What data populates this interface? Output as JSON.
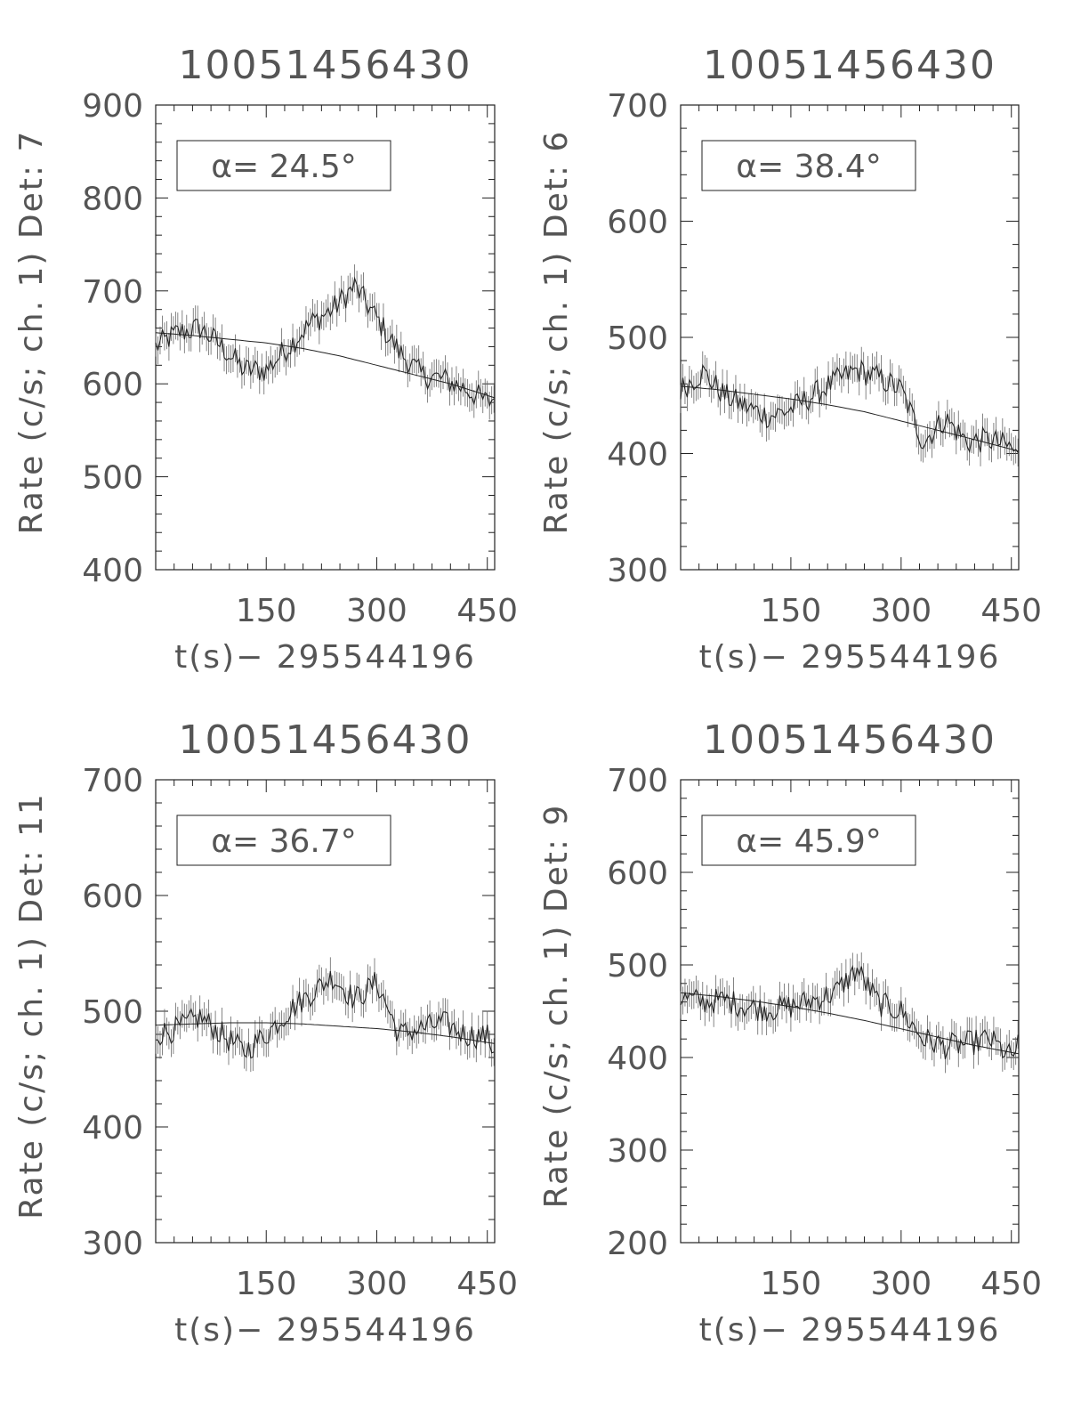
{
  "chart_data": [
    {
      "type": "line",
      "title": "10051456430",
      "xlabel": "t(s)− 295544196",
      "ylabel": "Rate (c/s; ch. 1) Det: 7",
      "annotation": "α= 24.5°",
      "xlim": [
        0,
        460
      ],
      "ylim": [
        400,
        900
      ],
      "xticks": [
        150,
        300,
        450
      ],
      "yticks": [
        400,
        500,
        600,
        700,
        800,
        900
      ],
      "series": [
        {
          "x": [
            0,
            30,
            60,
            90,
            120,
            150,
            180,
            210,
            240,
            270,
            300,
            330,
            360,
            390,
            420,
            450,
            460
          ],
          "y": [
            640,
            655,
            660,
            640,
            615,
            615,
            640,
            665,
            680,
            705,
            670,
            635,
            610,
            605,
            595,
            580,
            585
          ]
        },
        {
          "x": [
            0,
            50,
            100,
            150,
            200,
            250,
            300,
            350,
            400,
            460
          ],
          "y": [
            655,
            652,
            648,
            644,
            638,
            630,
            620,
            610,
            600,
            585
          ]
        }
      ]
    },
    {
      "type": "line",
      "title": "10051456430",
      "xlabel": "t(s)− 295544196",
      "ylabel": "Rate (c/s; ch. 1) Det: 6",
      "annotation": "α= 38.4°",
      "xlim": [
        0,
        460
      ],
      "ylim": [
        300,
        700
      ],
      "xticks": [
        150,
        300,
        450
      ],
      "yticks": [
        300,
        400,
        500,
        600,
        700
      ],
      "series": [
        {
          "x": [
            0,
            30,
            60,
            90,
            120,
            150,
            180,
            210,
            240,
            270,
            300,
            330,
            360,
            390,
            420,
            450,
            460
          ],
          "y": [
            455,
            470,
            450,
            440,
            432,
            438,
            450,
            462,
            472,
            465,
            455,
            410,
            430,
            410,
            412,
            405,
            395
          ]
        },
        {
          "x": [
            0,
            50,
            100,
            150,
            200,
            250,
            300,
            350,
            400,
            460
          ],
          "y": [
            458,
            455,
            451,
            447,
            442,
            436,
            428,
            420,
            412,
            402
          ]
        }
      ]
    },
    {
      "type": "line",
      "title": "10051456430",
      "xlabel": "t(s)− 295544196",
      "ylabel": "Rate (c/s; ch. 1) Det: 11",
      "annotation": "α= 36.7°",
      "xlim": [
        0,
        460
      ],
      "ylim": [
        300,
        700
      ],
      "xticks": [
        150,
        300,
        450
      ],
      "yticks": [
        300,
        400,
        500,
        600,
        700
      ],
      "series": [
        {
          "x": [
            0,
            30,
            60,
            90,
            120,
            150,
            180,
            210,
            240,
            270,
            300,
            330,
            360,
            390,
            420,
            450,
            460
          ],
          "y": [
            480,
            485,
            495,
            480,
            465,
            480,
            500,
            515,
            530,
            510,
            525,
            480,
            485,
            490,
            480,
            478,
            465
          ]
        },
        {
          "x": [
            0,
            50,
            100,
            150,
            200,
            250,
            300,
            350,
            400,
            460
          ],
          "y": [
            488,
            489,
            490,
            490,
            489,
            487,
            485,
            482,
            478,
            472
          ]
        }
      ]
    },
    {
      "type": "line",
      "title": "10051456430",
      "xlabel": "t(s)− 295544196",
      "ylabel": "Rate (c/s; ch. 1) Det: 9",
      "annotation": "α= 45.9°",
      "xlim": [
        0,
        460
      ],
      "ylim": [
        200,
        700
      ],
      "xticks": [
        150,
        300,
        450
      ],
      "yticks": [
        200,
        300,
        400,
        500,
        600,
        700
      ],
      "series": [
        {
          "x": [
            0,
            30,
            60,
            90,
            120,
            150,
            180,
            210,
            240,
            270,
            300,
            330,
            360,
            390,
            420,
            450,
            460
          ],
          "y": [
            465,
            460,
            462,
            455,
            452,
            455,
            462,
            470,
            495,
            458,
            450,
            420,
            412,
            415,
            420,
            400,
            415
          ]
        },
        {
          "x": [
            0,
            50,
            100,
            150,
            200,
            250,
            300,
            350,
            400,
            460
          ],
          "y": [
            470,
            466,
            461,
            455,
            448,
            440,
            431,
            422,
            413,
            404
          ]
        }
      ]
    }
  ]
}
